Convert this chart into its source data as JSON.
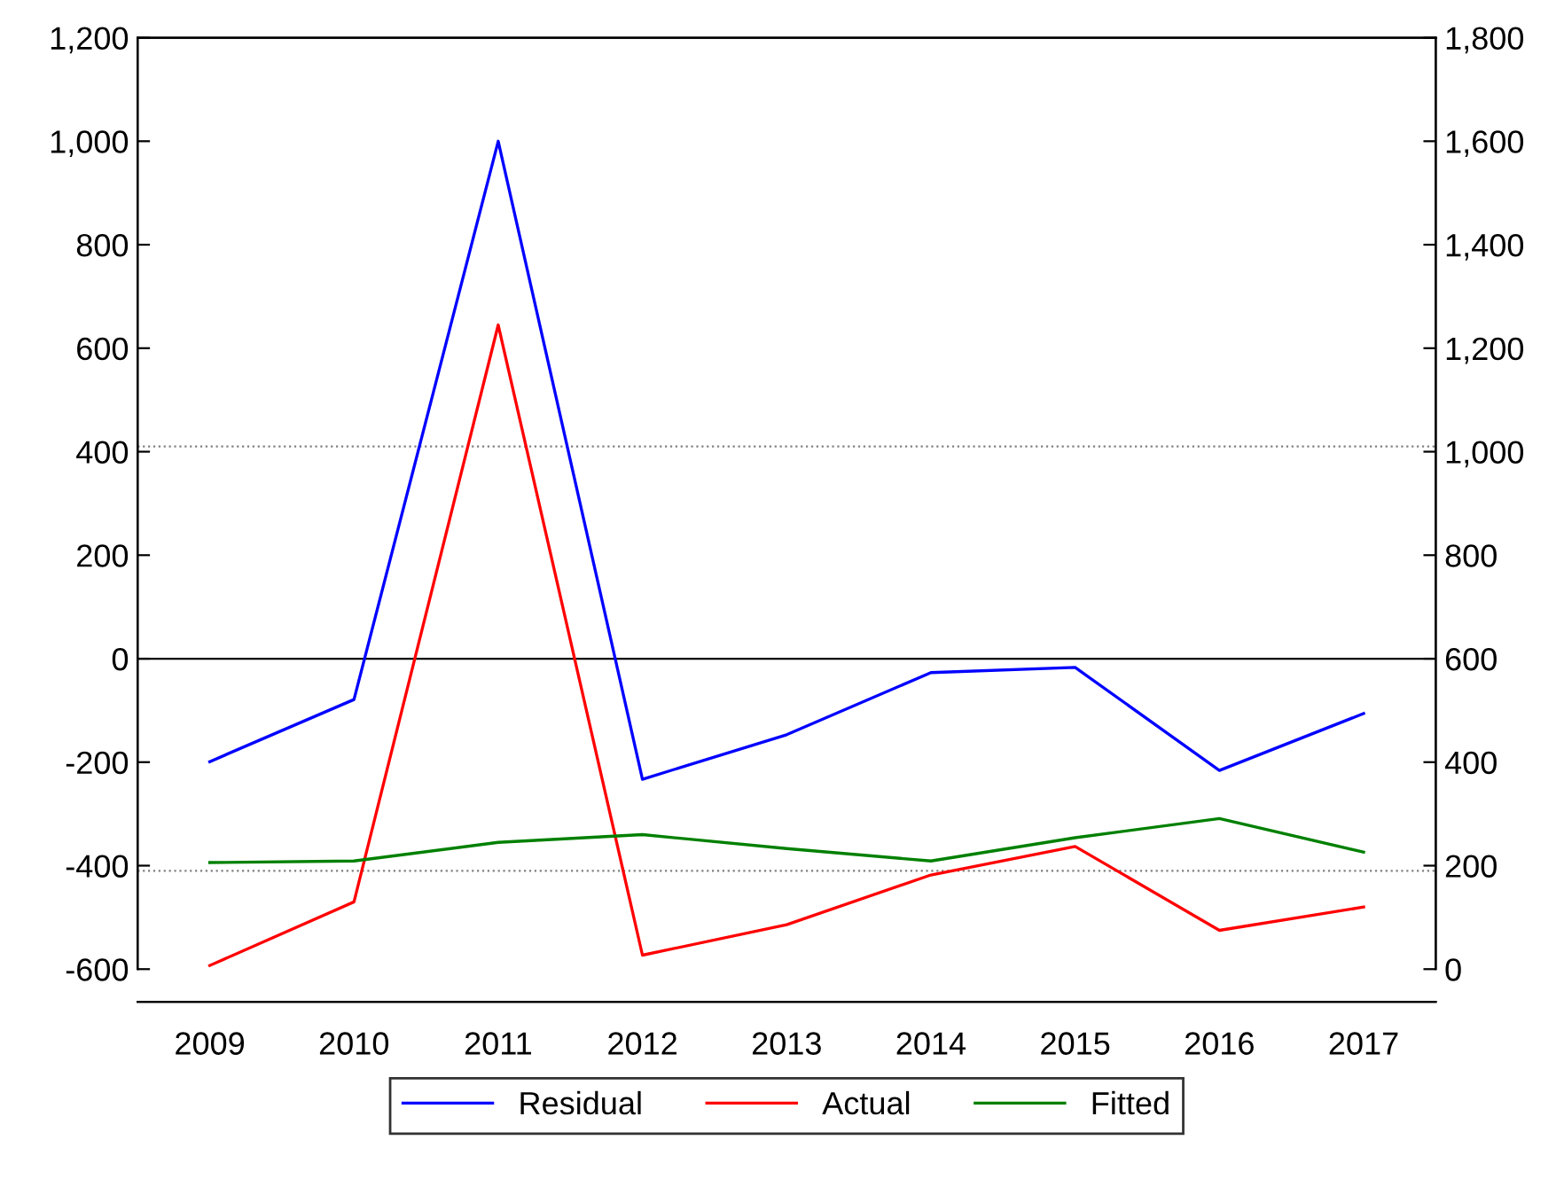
{
  "chart_data": {
    "type": "line",
    "categories": [
      "2009",
      "2010",
      "2011",
      "2012",
      "2013",
      "2014",
      "2015",
      "2016",
      "2017"
    ],
    "series": [
      {
        "name": "Residual",
        "color": "#0000ff",
        "values": [
          -199,
          -79,
          1000,
          -233,
          -147,
          -27,
          -17,
          -216,
          -106
        ]
      },
      {
        "name": "Actual",
        "color": "#ff0000",
        "axis": "y2",
        "values": [
          7,
          130,
          1245,
          27,
          86,
          182,
          237,
          75,
          120
        ]
      },
      {
        "name": "Fitted",
        "color": "#008000",
        "axis": "y2",
        "values": [
          206,
          209,
          245,
          260,
          233,
          209,
          254,
          291,
          226
        ]
      }
    ],
    "ylim": [
      -600,
      1200
    ],
    "yticks": [
      -600,
      -400,
      -200,
      0,
      200,
      400,
      600,
      800,
      {
        "value": 1000,
        "label": "1,000"
      },
      {
        "value": 1200,
        "label": "1,200"
      }
    ],
    "y2lim": [
      0,
      1800
    ],
    "y2ticks": [
      0,
      200,
      400,
      600,
      800,
      {
        "value": 1000,
        "label": "1,000"
      },
      {
        "value": 1200,
        "label": "1,200"
      },
      {
        "value": 1400,
        "label": "1,400"
      },
      {
        "value": 1600,
        "label": "1,600"
      },
      {
        "value": 1800,
        "label": "1,800"
      }
    ],
    "ref_lines": [
      {
        "axis": "y",
        "value": 0,
        "color": "#000000",
        "line_style": "solid"
      },
      {
        "axis": "y",
        "value": 410,
        "color": "#808080",
        "line_style": "dotted"
      },
      {
        "axis": "y",
        "value": -410,
        "color": "#808080",
        "line_style": "dotted"
      }
    ],
    "grid": false,
    "legend": "bottom",
    "marker": "none",
    "line_style": "solid"
  }
}
